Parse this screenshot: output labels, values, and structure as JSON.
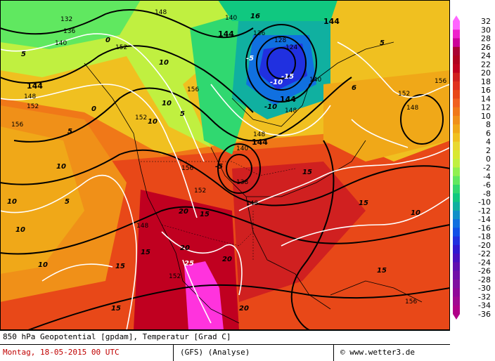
{
  "map": {
    "geopotential_labels": [
      {
        "text": "132"
      },
      {
        "text": "136"
      },
      {
        "text": "140"
      },
      {
        "text": "144"
      },
      {
        "text": "148"
      },
      {
        "text": "152"
      },
      {
        "text": "156"
      },
      {
        "text": "140"
      },
      {
        "text": "144"
      },
      {
        "text": "148"
      },
      {
        "text": "152"
      },
      {
        "text": "124"
      },
      {
        "text": "128"
      },
      {
        "text": "136"
      },
      {
        "text": "140"
      },
      {
        "text": "144"
      },
      {
        "text": "148"
      },
      {
        "text": "156"
      },
      {
        "text": "152"
      },
      {
        "text": "148"
      },
      {
        "text": "140"
      },
      {
        "text": "144"
      },
      {
        "text": "138"
      },
      {
        "text": "148"
      },
      {
        "text": "152"
      },
      {
        "text": "156"
      },
      {
        "text": "152"
      },
      {
        "text": "148"
      },
      {
        "text": "156"
      },
      {
        "text": "152"
      },
      {
        "text": "148"
      },
      {
        "text": "156"
      },
      {
        "text": "144"
      }
    ],
    "temperature_labels": [
      {
        "text": "5"
      },
      {
        "text": "0"
      },
      {
        "text": "10"
      },
      {
        "text": "5"
      },
      {
        "text": "10"
      },
      {
        "text": "5"
      },
      {
        "text": "10"
      },
      {
        "text": "-5"
      },
      {
        "text": "-10"
      },
      {
        "text": "-15"
      },
      {
        "text": "-10"
      },
      {
        "text": "5"
      },
      {
        "text": "10"
      },
      {
        "text": "15"
      },
      {
        "text": "20"
      },
      {
        "text": "25"
      },
      {
        "text": "15"
      },
      {
        "text": "20"
      },
      {
        "text": "15"
      },
      {
        "text": "10"
      },
      {
        "text": "5"
      },
      {
        "text": "10"
      },
      {
        "text": "15"
      },
      {
        "text": "20"
      },
      {
        "text": "15"
      },
      {
        "text": "10"
      },
      {
        "text": "15"
      },
      {
        "text": "10"
      },
      {
        "text": "15"
      },
      {
        "text": "20"
      },
      {
        "text": "0"
      },
      {
        "text": "-5"
      },
      {
        "text": "6"
      },
      {
        "text": "16"
      }
    ]
  },
  "colorbar": {
    "ticks": [
      "32",
      "30",
      "28",
      "26",
      "24",
      "22",
      "20",
      "18",
      "16",
      "14",
      "12",
      "10",
      "8",
      "6",
      "4",
      "2",
      "0",
      "-2",
      "-4",
      "-6",
      "-8",
      "-10",
      "-12",
      "-14",
      "-16",
      "-18",
      "-20",
      "-22",
      "-24",
      "-26",
      "-28",
      "-30",
      "-32",
      "-34",
      "-36"
    ],
    "colors": [
      "#ff66ff",
      "#ee22cc",
      "#cc0099",
      "#aa0033",
      "#b00020",
      "#c00020",
      "#d02020",
      "#e03020",
      "#e84818",
      "#f06020",
      "#f07818",
      "#f09018",
      "#f0a818",
      "#f0c020",
      "#e8d830",
      "#d8e830",
      "#c0f040",
      "#90f050",
      "#60e860",
      "#30d870",
      "#10c880",
      "#10b0a0",
      "#1090c8",
      "#1070e0",
      "#1050e8",
      "#2030e0",
      "#3018d0",
      "#4810c0",
      "#6010b0",
      "#7010a8",
      "#8010a0",
      "#900898",
      "#a00890",
      "#b00088"
    ]
  },
  "footer": {
    "title": "850 hPa Geopotential [gpdam], Temperatur [Grad C]",
    "date": "Montag, 18-05-2015  00 UTC",
    "model": "(GFS)  (Analyse)",
    "credit": "© www.wetter3.de"
  },
  "colors": {
    "cold": "#2040e0",
    "warm": "#e84818",
    "hot": "#ff66ff"
  }
}
